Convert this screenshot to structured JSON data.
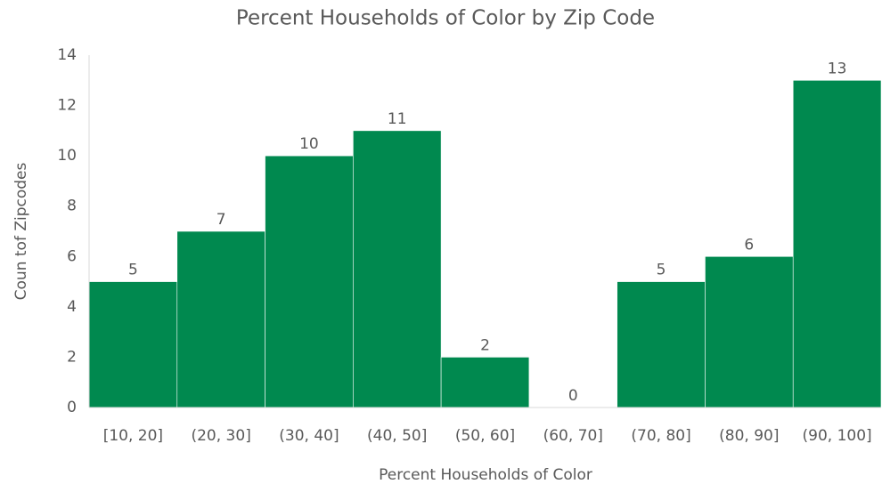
{
  "chart_data": {
    "type": "bar",
    "title": "Percent Households of Color by Zip Code",
    "x_label": "Percent Households of Color",
    "y_label": "Coun tof Zipcodes",
    "categories": [
      "[10, 20]",
      "(20, 30]",
      "(30, 40]",
      "(40, 50]",
      "(50, 60]",
      "(60, 70]",
      "(70, 80]",
      "(80, 90]",
      "(90, 100]"
    ],
    "values": [
      5,
      7,
      10,
      11,
      2,
      0,
      5,
      6,
      13
    ],
    "color": "#00894f",
    "ylim": [
      0,
      14
    ],
    "yticks": [
      0,
      2,
      4,
      6,
      8,
      10,
      12,
      14
    ],
    "grid": false
  }
}
